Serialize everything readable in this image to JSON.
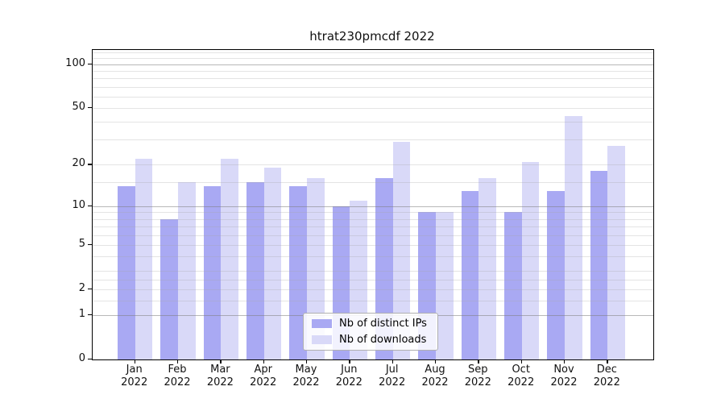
{
  "title": "htrat230pmcdf 2022",
  "chart_data": {
    "type": "bar",
    "title": "htrat230pmcdf 2022",
    "categories": [
      "Jan",
      "Feb",
      "Mar",
      "Apr",
      "May",
      "Jun",
      "Jul",
      "Aug",
      "Sep",
      "Oct",
      "Nov",
      "Dec"
    ],
    "category_year": "2022",
    "series": [
      {
        "name": "Nb of distinct IPs",
        "color": "#a9a9f3",
        "values": [
          14,
          8,
          14,
          15,
          14,
          10,
          16,
          9,
          13,
          9,
          13,
          18
        ]
      },
      {
        "name": "Nb of downloads",
        "color": "#d9d9f8",
        "values": [
          22,
          15,
          22,
          19,
          16,
          11,
          29,
          9,
          16,
          21,
          44,
          27
        ]
      }
    ],
    "xlabel": "",
    "ylabel": "",
    "yscale": "log1p",
    "ylim": [
      0,
      125
    ],
    "yticks": [
      0,
      1,
      2,
      5,
      10,
      20,
      50,
      100
    ],
    "ytick_labels": [
      "0",
      "1",
      "2",
      "5",
      "10",
      "20",
      "50",
      "100"
    ],
    "major_gridlines": [
      1,
      10,
      100
    ],
    "light_gridlines": [
      2,
      5,
      20,
      50
    ],
    "minor_gridlines": [
      1.5,
      2.5,
      3,
      4,
      6,
      7,
      8,
      9,
      15,
      30,
      40,
      60,
      70,
      80,
      90,
      110,
      120
    ],
    "grid": true,
    "legend_position": "lower center",
    "colors": {
      "grid_major": "#7d7d7d",
      "grid_minor": "#e3e3e3",
      "spine": "#000000"
    }
  },
  "legend": {
    "items": [
      {
        "label": "Nb of distinct IPs"
      },
      {
        "label": "Nb of downloads"
      }
    ]
  }
}
